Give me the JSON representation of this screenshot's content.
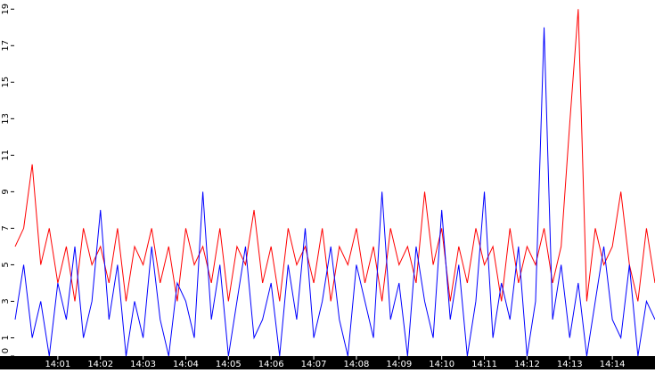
{
  "chart_data": {
    "type": "line",
    "x": [
      0,
      0.2,
      0.4,
      0.6,
      0.8,
      1,
      1.2,
      1.4,
      1.6,
      1.8,
      2,
      2.2,
      2.4,
      2.6,
      2.8,
      3,
      3.2,
      3.4,
      3.6,
      3.8,
      4,
      4.2,
      4.4,
      4.6,
      4.8,
      5,
      5.2,
      5.4,
      5.6,
      5.8,
      6,
      6.2,
      6.4,
      6.6,
      6.8,
      7,
      7.2,
      7.4,
      7.6,
      7.8,
      8,
      8.2,
      8.4,
      8.6,
      8.8,
      9,
      9.2,
      9.4,
      9.6,
      9.8,
      10,
      10.2,
      10.4,
      10.6,
      10.8,
      11,
      11.2,
      11.4,
      11.6,
      11.8,
      12,
      12.2,
      12.4,
      12.6,
      12.8,
      13,
      13.2,
      13.4,
      13.6,
      13.8,
      14,
      14.2,
      14.4,
      14.6,
      14.8,
      15
    ],
    "series": [
      {
        "color": "#ff0000",
        "values": [
          6,
          7,
          10.5,
          5,
          7,
          4,
          6,
          3,
          7,
          5,
          6,
          4,
          7,
          3,
          6,
          5,
          7,
          4,
          6,
          3,
          7,
          5,
          6,
          4,
          7,
          3,
          6,
          5,
          8,
          4,
          6,
          3,
          7,
          5,
          6,
          4,
          7,
          3,
          6,
          5,
          7,
          4,
          6,
          3,
          7,
          5,
          6,
          4,
          9,
          5,
          7,
          3,
          6,
          4,
          7,
          5,
          6,
          3,
          7,
          4,
          6,
          5,
          7,
          4,
          6,
          12.7,
          19,
          3,
          7,
          5,
          6,
          9,
          5,
          3,
          7,
          4
        ]
      },
      {
        "color": "#0000ff",
        "values": [
          2,
          5,
          1,
          3,
          0,
          4,
          2,
          6,
          1,
          3,
          8,
          2,
          5,
          0,
          3,
          1,
          6,
          2,
          0,
          4,
          3,
          1,
          9,
          2,
          5,
          0,
          3,
          6,
          1,
          2,
          4,
          0,
          5,
          2,
          7,
          1,
          3,
          6,
          2,
          0,
          5,
          3,
          1,
          9,
          2,
          4,
          0,
          6,
          3,
          1,
          8,
          2,
          5,
          0,
          3,
          9,
          1,
          4,
          2,
          6,
          0,
          3,
          18,
          2,
          5,
          1,
          4,
          0,
          3,
          6,
          2,
          1,
          5,
          0,
          3,
          2
        ]
      }
    ],
    "xlim": [
      0,
      15
    ],
    "xticks": [
      {
        "value": 1,
        "label": "14:01"
      },
      {
        "value": 2,
        "label": "14:02"
      },
      {
        "value": 3,
        "label": "14:03"
      },
      {
        "value": 4,
        "label": "14:04"
      },
      {
        "value": 5,
        "label": "14:05"
      },
      {
        "value": 6,
        "label": "14:06"
      },
      {
        "value": 7,
        "label": "14:07"
      },
      {
        "value": 8,
        "label": "14:08"
      },
      {
        "value": 9,
        "label": "14:09"
      },
      {
        "value": 10,
        "label": "14:10"
      },
      {
        "value": 11,
        "label": "14:11"
      },
      {
        "value": 12,
        "label": "14:12"
      },
      {
        "value": 13,
        "label": "14:13"
      },
      {
        "value": 14,
        "label": "14:14"
      }
    ],
    "ylim": [
      0,
      19.5
    ],
    "yticks": [
      0,
      1,
      3,
      5,
      7,
      9,
      11,
      13,
      15,
      17,
      19
    ]
  }
}
